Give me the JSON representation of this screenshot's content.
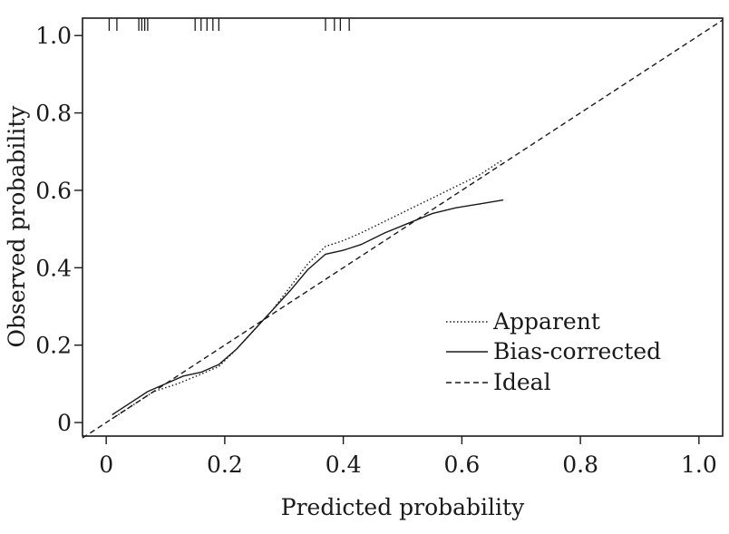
{
  "chart_data": {
    "type": "line",
    "xlabel": "Predicted probability",
    "ylabel": "Observed probability",
    "xlim": [
      -0.04,
      1.04
    ],
    "ylim": [
      -0.035,
      1.045
    ],
    "xticks": [
      0,
      0.2,
      0.4,
      0.6,
      0.8,
      1.0
    ],
    "xtick_labels": [
      "0",
      "0.2",
      "0.4",
      "0.6",
      "0.8",
      "1.0"
    ],
    "yticks": [
      0,
      0.2,
      0.4,
      0.6,
      0.8,
      1.0
    ],
    "ytick_labels": [
      "0",
      "0.2",
      "0.4",
      "0.6",
      "0.8",
      "1.0"
    ],
    "grid": false,
    "legend_position": "bottom-right",
    "series": [
      {
        "name": "Apparent",
        "style": "dotted",
        "x": [
          0.01,
          0.04,
          0.08,
          0.12,
          0.16,
          0.19,
          0.22,
          0.25,
          0.28,
          0.31,
          0.34,
          0.37,
          0.4,
          0.43,
          0.47,
          0.51,
          0.55,
          0.59,
          0.63,
          0.67
        ],
        "y": [
          0.01,
          0.04,
          0.08,
          0.1,
          0.125,
          0.145,
          0.19,
          0.24,
          0.29,
          0.35,
          0.41,
          0.455,
          0.47,
          0.49,
          0.52,
          0.55,
          0.58,
          0.61,
          0.64,
          0.68
        ]
      },
      {
        "name": "Bias-corrected",
        "style": "solid",
        "x": [
          0.01,
          0.04,
          0.07,
          0.1,
          0.13,
          0.16,
          0.19,
          0.22,
          0.25,
          0.28,
          0.31,
          0.34,
          0.37,
          0.4,
          0.43,
          0.47,
          0.51,
          0.55,
          0.59,
          0.63,
          0.67
        ],
        "y": [
          0.02,
          0.05,
          0.08,
          0.1,
          0.12,
          0.13,
          0.15,
          0.19,
          0.24,
          0.29,
          0.34,
          0.395,
          0.435,
          0.445,
          0.46,
          0.49,
          0.515,
          0.54,
          0.555,
          0.565,
          0.575
        ]
      },
      {
        "name": "Ideal",
        "style": "dashed",
        "x": [
          -0.04,
          1.04
        ],
        "y": [
          -0.04,
          1.04
        ]
      }
    ],
    "rug_x": [
      0.005,
      0.018,
      0.055,
      0.06,
      0.065,
      0.07,
      0.15,
      0.16,
      0.17,
      0.18,
      0.19,
      0.37,
      0.385,
      0.395,
      0.41
    ]
  }
}
